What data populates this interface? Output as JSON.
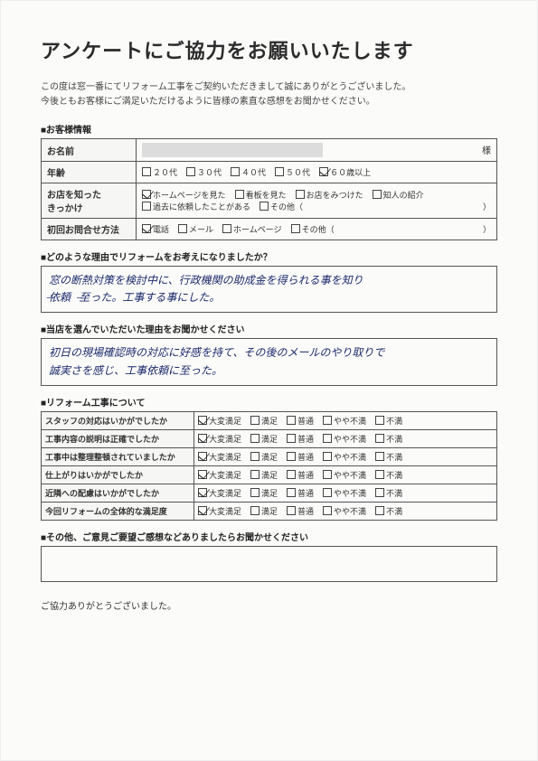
{
  "title": "アンケートにご協力をお願いいたします",
  "intro_line1": "この度は窓一番にてリフォーム工事をご契約いただきまして誠にありがとうございました。",
  "intro_line2": "今後ともお客様にご満足いただけるように皆様の素直な感想をお聞かせください。",
  "section_customer": "■お客様情報",
  "customer": {
    "name_label": "お名前",
    "name_suffix": "様",
    "age_label": "年齢",
    "age_options": [
      "２０代",
      "３０代",
      "４０代",
      "５０代",
      "６０歳以上"
    ],
    "age_checked_index": 4,
    "source_label1": "お店を知った",
    "source_label2": "きっかけ",
    "source_row1": [
      {
        "label": "ホームページを見た",
        "checked": true
      },
      {
        "label": "看板を見た",
        "checked": false
      },
      {
        "label": "お店をみつけた",
        "checked": false
      },
      {
        "label": "知人の紹介",
        "checked": false
      }
    ],
    "source_row2": [
      {
        "label": "過去に依頼したことがある",
        "checked": false
      },
      {
        "label": "その他（",
        "checked": false
      }
    ],
    "source_row2_close": "）",
    "inquiry_label": "初回お問合せ方法",
    "inquiry_options": [
      {
        "label": "電話",
        "checked": true
      },
      {
        "label": "メール",
        "checked": false
      },
      {
        "label": "ホームページ",
        "checked": false
      },
      {
        "label": "その他（",
        "checked": false
      }
    ],
    "inquiry_close": "）"
  },
  "section_reason": "■どのような理由でリフォームをお考えになりましたか？",
  "reason_answer": "窓の断熱対策を検討中に、行政機関の助成金を得られる事を知り\n̶̶依頼し̶̶至った。工事する事にした。",
  "section_choose": "■当店を選んでいただいた理由をお聞かせください",
  "choose_answer": "初日の現場確認時の対応に好感を持て、その後のメールのやり取りで\n誠実さを感じ、工事依頼に至った。",
  "section_rating": "■リフォーム工事について",
  "rating_options": [
    "大変満足",
    "満足",
    "普通",
    "やや不満",
    "不満"
  ],
  "rating_rows": [
    {
      "label": "スタッフの対応はいかがでしたか",
      "checked": 0
    },
    {
      "label": "工事内容の説明は正確でしたか",
      "checked": 0
    },
    {
      "label": "工事中は整理整頓されていましたか",
      "checked": 0
    },
    {
      "label": "仕上がりはいかがでしたか",
      "checked": 0
    },
    {
      "label": "近隣への配慮はいかがでしたか",
      "checked": 0
    },
    {
      "label": "今回リフォームの全体的な満足度",
      "checked": 0
    }
  ],
  "section_other": "■その他、ご意見ご要望ご感想などありましたらお聞かせください",
  "closing": "ご協力ありがとうございました。",
  "colors": {
    "border": "#555555",
    "header_bg": "#f6f6f4",
    "handwriting": "#1b2a6b",
    "page_bg": "#fbfbfa",
    "redaction": "#dcdcdc"
  }
}
